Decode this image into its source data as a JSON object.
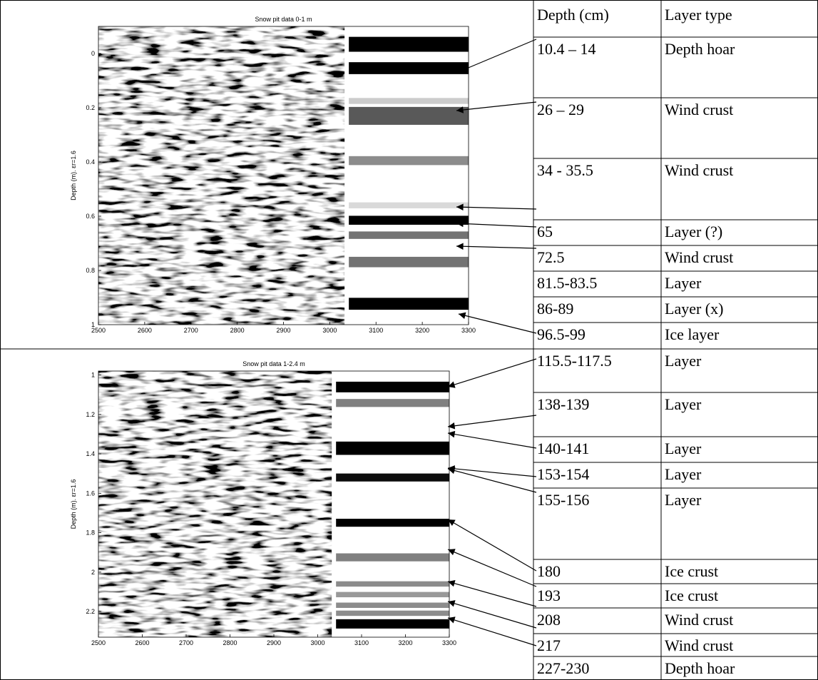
{
  "plots": [
    {
      "title": "Snow pit data 0-1 m",
      "ylabel": "Depth (m).  εr=1.6",
      "xlim": [
        2500,
        3300
      ],
      "xticks": [
        2500,
        2600,
        2700,
        2800,
        2900,
        3000,
        3100,
        3200,
        3300
      ],
      "ylim": [
        -0.1,
        1
      ],
      "yticks": [
        0,
        0.2,
        0.4,
        0.6,
        0.8,
        1
      ]
    },
    {
      "title": "Snow pit data 1-2.4 m",
      "ylabel": "Depth (m).  εr=1.6",
      "xlim": [
        2500,
        3300
      ],
      "xticks": [
        2500,
        2600,
        2700,
        2800,
        2900,
        3000,
        3100,
        3200,
        3300
      ],
      "ylim": [
        0.98,
        2.33
      ],
      "yticks": [
        1,
        1.2,
        1.4,
        1.6,
        1.8,
        2,
        2.2
      ]
    }
  ],
  "table": {
    "header": [
      "Depth (cm)",
      "Layer type"
    ],
    "rows": [
      [
        "10.4 – 14",
        "Depth hoar"
      ],
      [
        "26 – 29",
        "Wind crust"
      ],
      [
        "34 - 35.5",
        "Wind crust"
      ],
      [
        "65",
        "Layer (?)"
      ],
      [
        "72.5",
        "Wind crust"
      ],
      [
        "81.5-83.5",
        "Layer"
      ],
      [
        "86-89",
        "Layer (x)"
      ],
      [
        "96.5-99",
        "Ice layer"
      ],
      [
        "115.5-117.5",
        "Layer"
      ],
      [
        "138-139",
        "Layer"
      ],
      [
        "140-141",
        "Layer"
      ],
      [
        "153-154",
        "Layer"
      ],
      [
        "155-156",
        "Layer"
      ],
      [
        "180",
        "Ice crust"
      ],
      [
        "193",
        "Ice crust"
      ],
      [
        "208",
        "Wind crust"
      ],
      [
        "217",
        "Wind crust"
      ],
      [
        "227-230",
        "Depth hoar"
      ]
    ]
  }
}
